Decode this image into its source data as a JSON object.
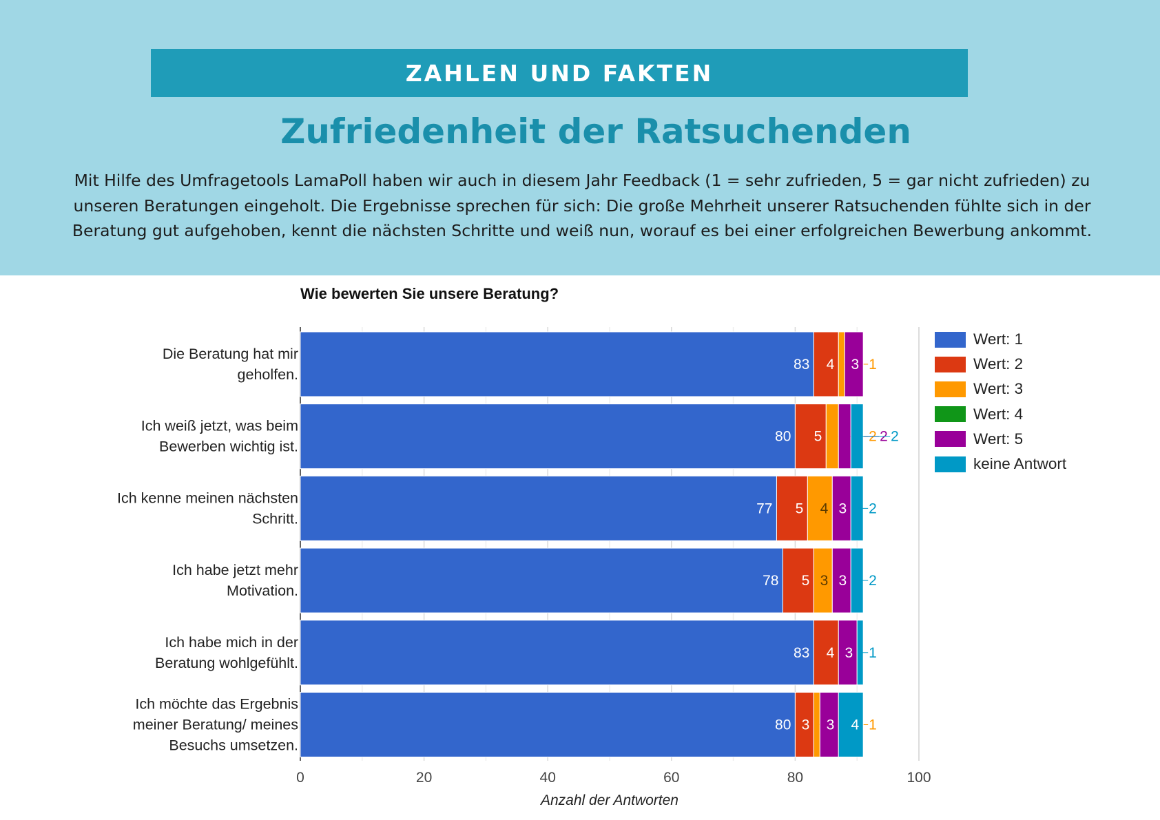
{
  "header": {
    "banner": "ZAHLEN UND FAKTEN",
    "title": "Zufriedenheit der Ratsuchenden",
    "paragraph": "Mit Hilfe des Umfragetools LamaPoll haben wir auch in diesem Jahr Feedback (1 = sehr zufrieden, 5 = gar nicht zufrieden) zu unseren Beratungen eingeholt. Die Ergebnisse sprechen für sich: Die große Mehrheit unserer Ratsuchenden fühlte sich in der Beratung gut aufgehoben, kennt die nächsten Schritte und weiß nun, worauf es bei einer erfolgreichen Bewerbung ankommt."
  },
  "chart_data": {
    "type": "bar",
    "orientation": "horizontal",
    "stacked": true,
    "title": "Wie bewerten Sie unsere Beratung?",
    "xlabel": "Anzahl der Antworten",
    "ylabel": "",
    "xlim": [
      0,
      100
    ],
    "xticks": [
      0,
      20,
      40,
      60,
      80,
      100
    ],
    "grid": true,
    "legend_position": "right",
    "categories": [
      [
        "Die Beratung hat mir",
        "geholfen."
      ],
      [
        "Ich weiß jetzt, was beim",
        "Bewerben wichtig ist."
      ],
      [
        "Ich kenne meinen nächsten",
        "Schritt."
      ],
      [
        "Ich habe jetzt mehr",
        "Motivation."
      ],
      [
        "Ich habe mich in der",
        "Beratung wohlgefühlt."
      ],
      [
        "Ich möchte das Ergebnis",
        "meiner Beratung/ meines",
        "Besuchs umsetzen."
      ]
    ],
    "series": [
      {
        "name": "Wert: 1",
        "color": "#3366cc",
        "values": [
          83,
          80,
          77,
          78,
          83,
          80
        ]
      },
      {
        "name": "Wert: 2",
        "color": "#dc3912",
        "values": [
          4,
          5,
          5,
          5,
          4,
          3
        ]
      },
      {
        "name": "Wert: 3",
        "color": "#ff9900",
        "values": [
          1,
          2,
          4,
          3,
          0,
          1
        ]
      },
      {
        "name": "Wert: 4",
        "color": "#109618",
        "values": [
          0,
          0,
          0,
          0,
          0,
          0
        ]
      },
      {
        "name": "Wert: 5",
        "color": "#990099",
        "values": [
          3,
          2,
          3,
          3,
          3,
          3
        ]
      },
      {
        "name": "keine Antwort",
        "color": "#0099c6",
        "values": [
          0,
          2,
          2,
          2,
          1,
          4
        ]
      }
    ]
  }
}
